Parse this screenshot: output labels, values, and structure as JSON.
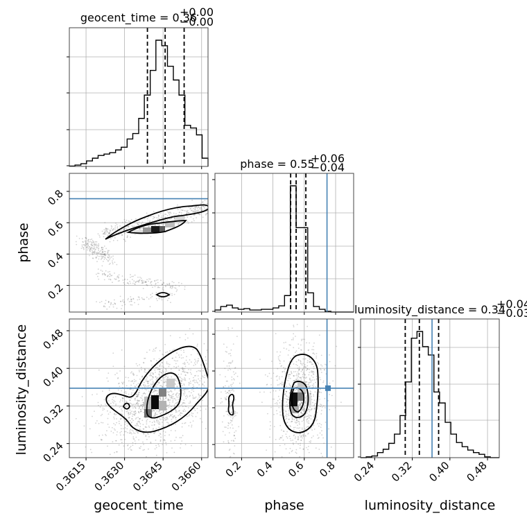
{
  "chart_data": {
    "type": "corner",
    "parameters": [
      {
        "name": "geocent_time",
        "xlabel": "geocent_time",
        "title": {
          "label": "geocent_time = 0.36",
          "plus": "+0.00",
          "minus": "−0.00"
        },
        "ticks": [
          {
            "value": 0.3615,
            "label": "0.3615"
          },
          {
            "value": 0.363,
            "label": "0.3630"
          },
          {
            "value": 0.3645,
            "label": "0.3645"
          },
          {
            "value": 0.366,
            "label": "0.3660"
          }
        ],
        "range": [
          0.36085,
          0.36625
        ],
        "quantiles": [
          0.36389,
          0.36458,
          0.36532
        ],
        "hist_bins": [
          0.36085,
          0.36107,
          0.3613,
          0.36152,
          0.36175,
          0.36197,
          0.3622,
          0.36242,
          0.36265,
          0.36287,
          0.3631,
          0.36332,
          0.36355,
          0.36377,
          0.364,
          0.36422,
          0.36445,
          0.36467,
          0.3649,
          0.36512,
          0.36535,
          0.36557,
          0.3658,
          0.36602,
          0.36625
        ],
        "hist_counts": [
          0.3,
          1,
          2,
          4,
          6,
          8,
          9,
          10,
          12,
          14,
          20,
          24,
          35,
          52,
          70,
          92,
          88,
          73,
          63,
          52,
          30,
          28,
          23,
          6
        ]
      },
      {
        "name": "phase",
        "xlabel": "phase",
        "ylabel": "phase",
        "title": {
          "label": "phase = 0.55",
          "plus": "+0.06",
          "minus": "−0.04"
        },
        "truth": 0.745,
        "ticks": [
          {
            "value": 0.2,
            "label": "0.2"
          },
          {
            "value": 0.4,
            "label": "0.4"
          },
          {
            "value": 0.6,
            "label": "0.6"
          },
          {
            "value": 0.8,
            "label": "0.8"
          }
        ],
        "range": [
          0.03,
          0.915
        ],
        "quantiles": [
          0.513,
          0.548,
          0.61
        ],
        "hist_bins": [
          0.03,
          0.067,
          0.104,
          0.141,
          0.178,
          0.215,
          0.252,
          0.289,
          0.326,
          0.363,
          0.4,
          0.437,
          0.474,
          0.511,
          0.548,
          0.585,
          0.622,
          0.659,
          0.696,
          0.733,
          0.77,
          0.807,
          0.844,
          0.881,
          0.915
        ],
        "hist_counts": [
          3,
          8,
          10,
          6,
          4,
          5,
          3,
          3,
          4,
          4,
          6,
          9,
          24,
          184,
          123,
          123,
          28,
          8,
          4,
          1,
          0,
          0,
          0,
          0
        ]
      },
      {
        "name": "luminosity_distance",
        "xlabel": "luminosity_distance",
        "ylabel": "luminosity_distance",
        "title": {
          "label": "luminosity_distance = 0.34",
          "plus": "+0.04",
          "minus": "−0.03"
        },
        "truth": 0.362,
        "ticks": [
          {
            "value": 0.24,
            "label": "0.24"
          },
          {
            "value": 0.32,
            "label": "0.32"
          },
          {
            "value": 0.4,
            "label": "0.40"
          },
          {
            "value": 0.48,
            "label": "0.48"
          }
        ],
        "range": [
          0.21,
          0.505
        ],
        "quantiles": [
          0.305,
          0.335,
          0.376
        ],
        "hist_bins": [
          0.21,
          0.222,
          0.234,
          0.246,
          0.258,
          0.27,
          0.282,
          0.294,
          0.306,
          0.318,
          0.33,
          0.342,
          0.354,
          0.366,
          0.378,
          0.39,
          0.402,
          0.414,
          0.426,
          0.438,
          0.45,
          0.462,
          0.474,
          0.486,
          0.505
        ],
        "hist_counts": [
          0,
          1,
          2,
          6,
          10,
          17,
          28,
          50,
          90,
          142,
          150,
          132,
          122,
          78,
          65,
          42,
          28,
          18,
          13,
          9,
          6,
          4,
          1,
          0
        ]
      }
    ],
    "contour_levels": [
      "39.3%",
      "86.5%"
    ],
    "grid": true,
    "colors": {
      "truth": "#4682b4",
      "samples": "#7f7f7f",
      "density_peak": "#000000"
    }
  }
}
